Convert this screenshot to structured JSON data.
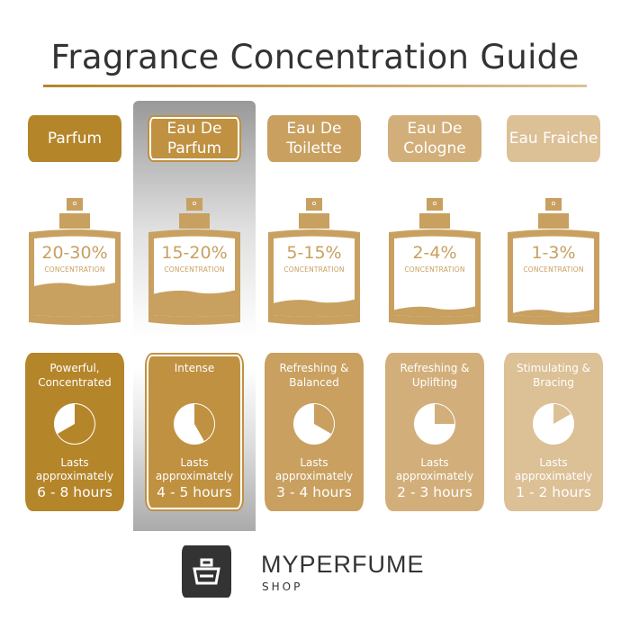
{
  "title": "Fragrance Concentration Guide",
  "concentration_label": "CONCENTRATION",
  "lasts_label": "Lasts approximately",
  "highlighted_column": 1,
  "columns": [
    {
      "name": "Parfum",
      "percent": "20-30%",
      "fill_level": 0.4,
      "description": "Powerful, Concentrated",
      "hours": "6 - 8 hours",
      "pie_fraction": 0.667,
      "color": "#b5852a"
    },
    {
      "name": "Eau De Parfum",
      "percent": "15-20%",
      "fill_level": 0.3,
      "description": "Intense",
      "hours": "4 - 5 hours",
      "pie_fraction": 0.417,
      "color": "#bf9141"
    },
    {
      "name": "Eau De Toilette",
      "percent": "5-15%",
      "fill_level": 0.18,
      "description": "Refreshing & Balanced",
      "hours": "3 - 4 hours",
      "pie_fraction": 0.333,
      "color": "#c9a060"
    },
    {
      "name": "Eau De Cologne",
      "percent": "2-4%",
      "fill_level": 0.09,
      "description": "Refreshing & Uplifting",
      "hours": "2 - 3 hours",
      "pie_fraction": 0.25,
      "color": "#d2af7a"
    },
    {
      "name": "Eau Fraiche",
      "percent": "1-3%",
      "fill_level": 0.05,
      "description": "Stimulating & Bracing",
      "hours": "1 - 2 hours",
      "pie_fraction": 0.167,
      "color": "#dcc096"
    }
  ],
  "bottle_color": "#c8a060",
  "brand": {
    "name": "MYPERFUME",
    "sub": "SHOP"
  }
}
